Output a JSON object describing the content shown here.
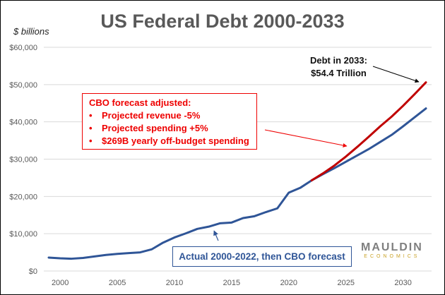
{
  "chart_data": {
    "type": "line",
    "title": "US Federal Debt 2000-2033",
    "ylabel": "$ billions",
    "xlabel": "",
    "ylim": [
      0,
      60000
    ],
    "xlim": [
      1999,
      2032
    ],
    "y_ticks": [
      "$0",
      "$10,000",
      "$20,000",
      "$30,000",
      "$40,000",
      "$50,000",
      "$60,000"
    ],
    "y_tick_values": [
      0,
      10000,
      20000,
      30000,
      40000,
      50000,
      60000
    ],
    "x_ticks": [
      "2000",
      "2005",
      "2010",
      "2015",
      "2020",
      "2025",
      "2030"
    ],
    "x_tick_values": [
      2000,
      2005,
      2010,
      2015,
      2020,
      2025,
      2030
    ],
    "grid": true,
    "series": [
      {
        "name": "Actual 2000-2022, then CBO forecast",
        "color": "#2f5597",
        "x": [
          1999,
          2000,
          2001,
          2002,
          2003,
          2004,
          2005,
          2006,
          2007,
          2008,
          2009,
          2010,
          2011,
          2012,
          2013,
          2014,
          2015,
          2016,
          2017,
          2018,
          2019,
          2020,
          2021,
          2022,
          2023,
          2024,
          2025,
          2026,
          2027,
          2028,
          2029,
          2030,
          2031,
          2032
        ],
        "values": [
          3600,
          3400,
          3300,
          3500,
          3900,
          4300,
          4600,
          4800,
          5000,
          5800,
          7600,
          9000,
          10100,
          11300,
          11900,
          12800,
          13000,
          14200,
          14700,
          15800,
          16800,
          21000,
          22300,
          24300,
          26000,
          27600,
          29300,
          31000,
          32700,
          34600,
          36500,
          38800,
          41200,
          43600
        ]
      },
      {
        "name": "CBO forecast adjusted",
        "color": "#c00000",
        "x": [
          2022,
          2023,
          2024,
          2025,
          2026,
          2027,
          2028,
          2029,
          2030,
          2031,
          2032
        ],
        "values": [
          24300,
          26200,
          28300,
          30700,
          33300,
          36000,
          38800,
          41400,
          44300,
          47400,
          50600
        ]
      }
    ],
    "annotations": {
      "red_box_title": "CBO forecast adjusted:",
      "red_box_items": [
        "Projected revenue -5%",
        "Projected spending +5%",
        "$269B yearly off-budget spending"
      ],
      "end_label_line1": "Debt in 2033:",
      "end_label_line2": "$54.4 Trillion",
      "blue_box": "Actual 2000-2022, then CBO forecast"
    },
    "logo": {
      "line1": "MAULDIN",
      "line2": "ECONOMICS"
    }
  }
}
